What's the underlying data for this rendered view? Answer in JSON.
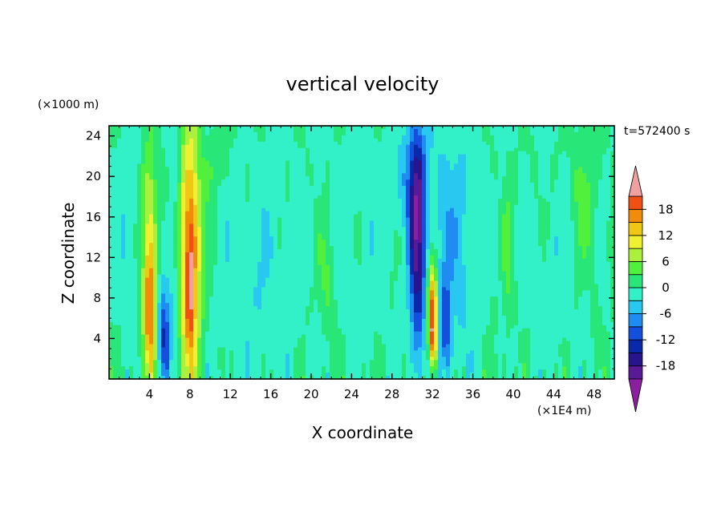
{
  "chart_data": {
    "type": "heatmap",
    "title": "vertical velocity",
    "xlabel": "X coordinate",
    "ylabel": "Z coordinate",
    "x_unit": "(×1E4 m)",
    "y_unit": "(×1000 m)",
    "time_label": "t=572400 s",
    "xlim": [
      0,
      50
    ],
    "ylim": [
      0,
      25
    ],
    "x_ticks": [
      4,
      8,
      12,
      16,
      20,
      24,
      28,
      32,
      36,
      40,
      44,
      48
    ],
    "y_ticks": [
      4,
      8,
      12,
      16,
      20,
      24
    ],
    "colorbar": {
      "levels": [
        -21,
        -18,
        -15,
        -12,
        -9,
        -6,
        -3,
        0,
        3,
        6,
        9,
        12,
        15,
        18,
        21
      ],
      "colors": [
        "#5a1a96",
        "#28148c",
        "#0a28aa",
        "#1450dc",
        "#1e8cf0",
        "#28c8f0",
        "#32f0c8",
        "#28e678",
        "#50f03c",
        "#aaf03c",
        "#f0f032",
        "#f0c814",
        "#f08c0a",
        "#f05014",
        "#e61e1e"
      ],
      "under_color": "#8c1ea0",
      "over_color": "#f0a0a0",
      "tick_labels": [
        "18",
        "12",
        "6",
        "0",
        "-6",
        "-12",
        "-18"
      ],
      "tick_values": [
        18,
        12,
        6,
        0,
        -6,
        -12,
        -18
      ]
    },
    "features": [
      {
        "x": 4.0,
        "z": 7.0,
        "sx": 0.45,
        "sz": 5.5,
        "amp": 18
      },
      {
        "x": 4.0,
        "z": 17.0,
        "sx": 0.6,
        "sz": 5.0,
        "amp": 7
      },
      {
        "x": 5.4,
        "z": 4.5,
        "sx": 0.4,
        "sz": 3.5,
        "amp": -12
      },
      {
        "x": 8.0,
        "z": 12.0,
        "sx": 0.75,
        "sz": 9.0,
        "amp": 20
      },
      {
        "x": 8.0,
        "z": 8.5,
        "sx": 0.22,
        "sz": 4.0,
        "amp": 6
      },
      {
        "x": 10.3,
        "z": 21.0,
        "sx": 0.6,
        "sz": 2.5,
        "amp": 3
      },
      {
        "x": 6.5,
        "z": 12.0,
        "sx": 0.6,
        "sz": 8.0,
        "amp": -4
      },
      {
        "x": 21.5,
        "z": 10.0,
        "sx": 0.7,
        "sz": 4.0,
        "amp": 4
      },
      {
        "x": 30.5,
        "z": 13.5,
        "sx": 0.55,
        "sz": 8.0,
        "amp": -17
      },
      {
        "x": 30.0,
        "z": 20.0,
        "sx": 1.0,
        "sz": 4.0,
        "amp": -6
      },
      {
        "x": 32.0,
        "z": 6.5,
        "sx": 0.35,
        "sz": 3.5,
        "amp": 21
      },
      {
        "x": 32.1,
        "z": 3.5,
        "sx": 0.2,
        "sz": 1.5,
        "amp": 10
      },
      {
        "x": 33.3,
        "z": 5.0,
        "sx": 0.4,
        "sz": 3.5,
        "amp": -10
      },
      {
        "x": 34.0,
        "z": 14.0,
        "sx": 2.0,
        "sz": 8.0,
        "amp": -5
      },
      {
        "x": 39.4,
        "z": 12.0,
        "sx": 0.3,
        "sz": 5.0,
        "amp": 4
      },
      {
        "x": 47.0,
        "z": 18.0,
        "sx": 0.8,
        "sz": 5.0,
        "amp": 4
      },
      {
        "x": 15.0,
        "z": 10.0,
        "sx": 3.0,
        "sz": 8.0,
        "amp": -2.5
      },
      {
        "x": 25.0,
        "z": 14.0,
        "sx": 3.0,
        "sz": 9.0,
        "amp": -1.5
      },
      {
        "x": 44.0,
        "z": 10.0,
        "sx": 2.0,
        "sz": 6.0,
        "amp": -2.0
      },
      {
        "x": 2.0,
        "z": 15.0,
        "sx": 1.0,
        "sz": 6.0,
        "amp": -3.0
      }
    ]
  }
}
